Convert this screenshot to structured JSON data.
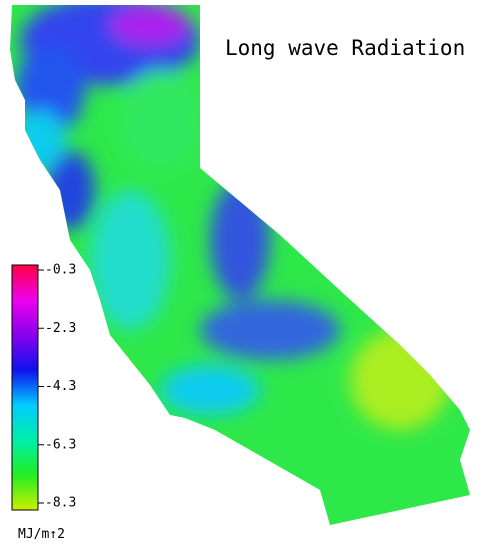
{
  "title": "Long wave Radiation",
  "colorbar": {
    "ticks": [
      -0.3,
      -2.3,
      -4.3,
      -6.3,
      -8.3
    ],
    "range": [
      -8.3,
      -0.3
    ],
    "unit": "MJ/m↑2",
    "colors": [
      "#ccee00",
      "#22ee22",
      "#00eeaa",
      "#00ccff",
      "#1111ee",
      "#8800ee",
      "#ee00ee",
      "#ff0044"
    ]
  }
}
